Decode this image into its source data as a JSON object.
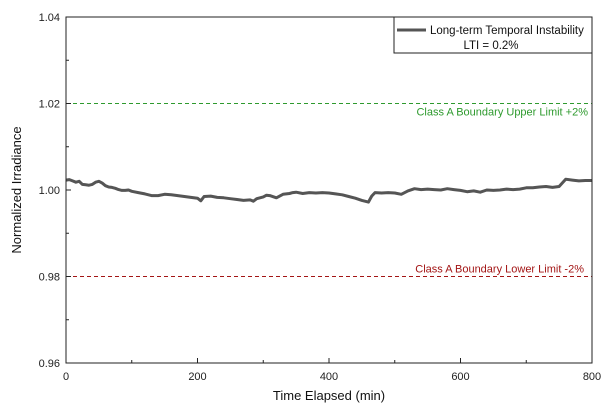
{
  "chart_data": {
    "type": "line",
    "title": "",
    "xlabel": "Time Elapsed (min)",
    "ylabel": "Normalized Irradiance",
    "xlim": [
      0,
      800
    ],
    "ylim": [
      0.96,
      1.04
    ],
    "x_ticks": [
      0,
      200,
      400,
      600,
      800
    ],
    "x_tick_labels": [
      "0",
      "200",
      "400",
      "600",
      "800"
    ],
    "y_ticks": [
      0.96,
      0.98,
      1.0,
      1.02,
      1.04
    ],
    "y_tick_labels": [
      "0.96",
      "0.98",
      "1.00",
      "1.02",
      "1.04"
    ],
    "grid": false,
    "legend_position": "top-right",
    "series": [
      {
        "name": "Long-term Temporal Instability",
        "color": "#555555",
        "points": [
          [
            0,
            1.0023
          ],
          [
            5,
            1.0024
          ],
          [
            10,
            1.0021
          ],
          [
            15,
            1.0018
          ],
          [
            20,
            1.002
          ],
          [
            25,
            1.0013
          ],
          [
            30,
            1.0012
          ],
          [
            35,
            1.0011
          ],
          [
            40,
            1.0013
          ],
          [
            45,
            1.0018
          ],
          [
            50,
            1.002
          ],
          [
            55,
            1.0016
          ],
          [
            60,
            1.001
          ],
          [
            65,
            1.0007
          ],
          [
            70,
            1.0006
          ],
          [
            75,
            1.0004
          ],
          [
            80,
            1.0001
          ],
          [
            85,
            0.9999
          ],
          [
            90,
            0.9999
          ],
          [
            95,
            1.0
          ],
          [
            100,
            0.9997
          ],
          [
            110,
            0.9994
          ],
          [
            120,
            0.9991
          ],
          [
            130,
            0.9987
          ],
          [
            140,
            0.9987
          ],
          [
            150,
            0.999
          ],
          [
            160,
            0.9989
          ],
          [
            170,
            0.9987
          ],
          [
            180,
            0.9985
          ],
          [
            190,
            0.9983
          ],
          [
            200,
            0.9981
          ],
          [
            205,
            0.9975
          ],
          [
            210,
            0.9985
          ],
          [
            220,
            0.9986
          ],
          [
            230,
            0.9983
          ],
          [
            240,
            0.9982
          ],
          [
            250,
            0.998
          ],
          [
            260,
            0.9978
          ],
          [
            270,
            0.9976
          ],
          [
            280,
            0.9977
          ],
          [
            285,
            0.9974
          ],
          [
            290,
            0.998
          ],
          [
            300,
            0.9984
          ],
          [
            305,
            0.9988
          ],
          [
            310,
            0.9987
          ],
          [
            320,
            0.9982
          ],
          [
            330,
            0.999
          ],
          [
            340,
            0.9992
          ],
          [
            345,
            0.9994
          ],
          [
            350,
            0.9995
          ],
          [
            360,
            0.9992
          ],
          [
            370,
            0.9994
          ],
          [
            380,
            0.9993
          ],
          [
            390,
            0.9994
          ],
          [
            400,
            0.9993
          ],
          [
            410,
            0.9991
          ],
          [
            420,
            0.9989
          ],
          [
            430,
            0.9985
          ],
          [
            440,
            0.9981
          ],
          [
            450,
            0.9976
          ],
          [
            460,
            0.9972
          ],
          [
            465,
            0.9986
          ],
          [
            470,
            0.9994
          ],
          [
            480,
            0.9993
          ],
          [
            490,
            0.9994
          ],
          [
            500,
            0.9993
          ],
          [
            510,
            0.999
          ],
          [
            520,
            0.9998
          ],
          [
            530,
            1.0003
          ],
          [
            540,
            1.0001
          ],
          [
            550,
            1.0002
          ],
          [
            560,
            1.0001
          ],
          [
            570,
            1.0
          ],
          [
            580,
            1.0003
          ],
          [
            590,
            1.0001
          ],
          [
            600,
            0.9999
          ],
          [
            610,
            0.9996
          ],
          [
            620,
            0.9998
          ],
          [
            630,
            0.9995
          ],
          [
            640,
            1.0
          ],
          [
            650,
            0.9999
          ],
          [
            660,
            1.0
          ],
          [
            670,
            1.0002
          ],
          [
            680,
            1.0001
          ],
          [
            690,
            1.0002
          ],
          [
            700,
            1.0005
          ],
          [
            710,
            1.0005
          ],
          [
            720,
            1.0007
          ],
          [
            730,
            1.0008
          ],
          [
            740,
            1.0006
          ],
          [
            750,
            1.0008
          ],
          [
            760,
            1.0025
          ],
          [
            770,
            1.0023
          ],
          [
            780,
            1.0021
          ],
          [
            790,
            1.0022
          ],
          [
            800,
            1.0022
          ]
        ]
      }
    ],
    "legend": {
      "entry": "Long-term Temporal Instability",
      "note": "LTI = 0.2%"
    },
    "reference_lines": [
      {
        "y": 1.02,
        "label": "Class A Boundary Upper Limit +2%",
        "color": "#2e9a2e"
      },
      {
        "y": 0.98,
        "label": "Class A Boundary Lower Limit -2%",
        "color": "#a31515"
      }
    ]
  }
}
